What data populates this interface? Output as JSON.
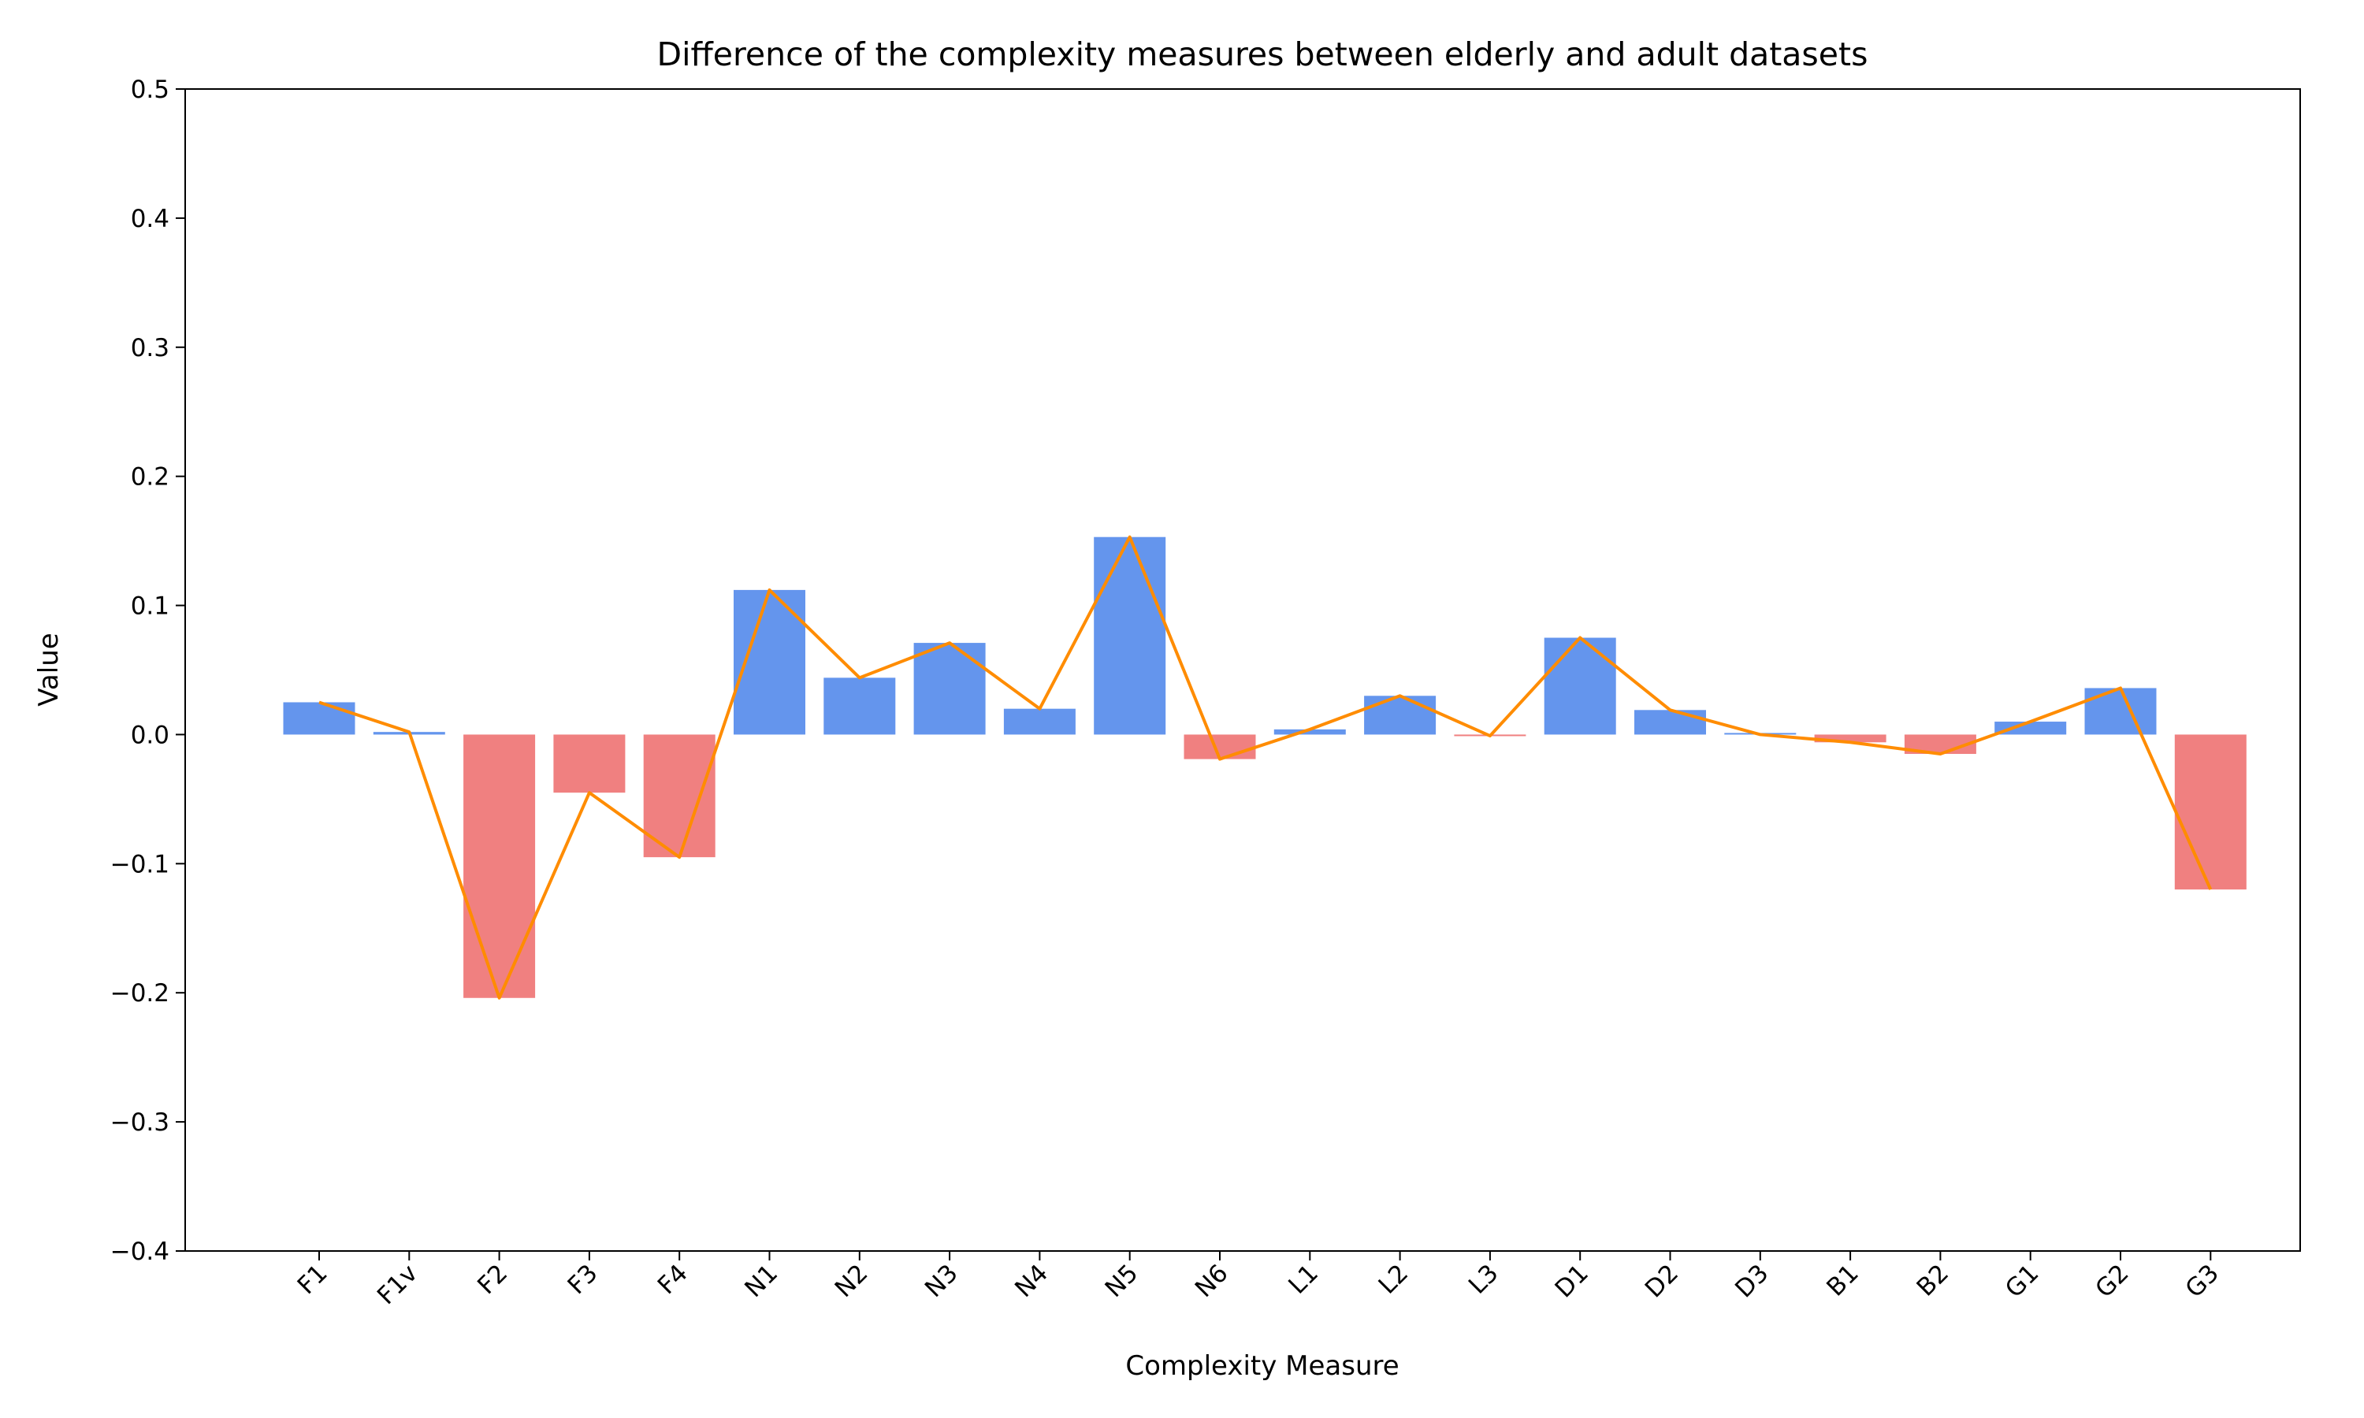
{
  "chart_data": {
    "type": "bar",
    "title": "Difference of the complexity measures between elderly and adult datasets",
    "xlabel": "Complexity Measure",
    "ylabel": "Value",
    "ylim": [
      -0.4,
      0.5
    ],
    "yticks": [
      -0.4,
      -0.3,
      -0.2,
      -0.1,
      0.0,
      0.1,
      0.2,
      0.3,
      0.4,
      0.5
    ],
    "ytick_labels": [
      "−0.4",
      "−0.3",
      "−0.2",
      "−0.1",
      "0.0",
      "0.1",
      "0.2",
      "0.3",
      "0.4",
      "0.5"
    ],
    "categories": [
      "F1",
      "F1v",
      "F2",
      "F3",
      "F4",
      "N1",
      "N2",
      "N3",
      "N4",
      "N5",
      "N6",
      "L1",
      "L2",
      "L3",
      "D1",
      "D2",
      "D3",
      "B1",
      "B2",
      "G1",
      "G2",
      "G3"
    ],
    "values": [
      0.025,
      0.002,
      -0.204,
      -0.045,
      -0.095,
      0.112,
      0.044,
      0.071,
      0.02,
      0.153,
      -0.019,
      0.004,
      0.03,
      -0.001,
      0.075,
      0.019,
      0.0,
      -0.006,
      -0.015,
      0.01,
      0.036,
      -0.12
    ],
    "colors": {
      "positive": "#6495ED",
      "negative": "#F08080",
      "line": "#FF8C00"
    },
    "grid": false,
    "legend": "none"
  }
}
